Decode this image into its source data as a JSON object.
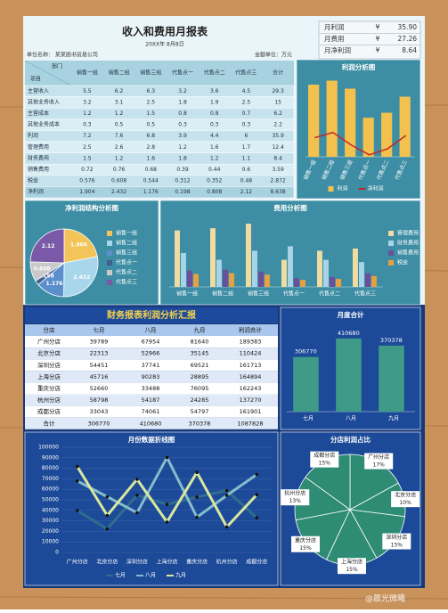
{
  "header": {
    "title": "收入和费用月报表",
    "date": "20XX年 8月8日",
    "company": "单位名称： 某某图书贸易公司",
    "unit": "金额单位：万元"
  },
  "summary": {
    "rows": [
      [
        "月利润",
        "¥",
        "35.90"
      ],
      [
        "月费用",
        "¥",
        "27.26"
      ],
      [
        "月净利润",
        "¥",
        "8.64"
      ]
    ]
  },
  "income_table": {
    "corner": [
      "部门",
      "项目"
    ],
    "columns": [
      "销售一组",
      "销售二组",
      "销售三组",
      "代售点一",
      "代售点二",
      "代售点三",
      "合计"
    ],
    "rows": [
      [
        "主营收入",
        5.5,
        6.2,
        6.3,
        3.2,
        3.6,
        4.5,
        29.3
      ],
      [
        "其他业务收入",
        3.2,
        3.1,
        2.5,
        1.8,
        1.9,
        2.5,
        15
      ],
      [
        "主营成本",
        1.2,
        1.2,
        1.5,
        0.8,
        0.8,
        0.7,
        6.2
      ],
      [
        "其他业务成本",
        0.3,
        0.5,
        0.5,
        0.3,
        0.3,
        0.3,
        2.2
      ],
      [
        "利润",
        7.2,
        7.6,
        6.8,
        3.9,
        4.4,
        6,
        35.9
      ],
      [
        "管理费用",
        2.5,
        2.6,
        2.8,
        1.2,
        1.6,
        1.7,
        12.4
      ],
      [
        "财务费用",
        1.5,
        1.2,
        1.6,
        1.8,
        1.2,
        1.1,
        8.4
      ],
      [
        "销售费用",
        0.72,
        0.76,
        0.68,
        0.39,
        0.44,
        0.6,
        3.59
      ],
      [
        "税金",
        0.576,
        0.608,
        0.544,
        0.312,
        0.352,
        0.48,
        2.872
      ],
      [
        "净利润",
        1.904,
        2.432,
        1.176,
        0.198,
        0.808,
        2.12,
        8.638
      ]
    ]
  },
  "branch_table": {
    "title": "财务报表利润分析汇报",
    "columns": [
      "分店",
      "七月",
      "八月",
      "九月",
      "利润合计"
    ],
    "rows": [
      [
        "广州分店",
        39789,
        67954,
        81640,
        189383
      ],
      [
        "北京分店",
        22313,
        52966,
        35145,
        110424
      ],
      [
        "深圳分店",
        54451,
        37741,
        69521,
        161713
      ],
      [
        "上海分店",
        45716,
        90283,
        28895,
        164894
      ],
      [
        "重庆分店",
        52660,
        33488,
        76095,
        162243
      ],
      [
        "杭州分店",
        58798,
        54187,
        24285,
        137270
      ],
      [
        "成都分店",
        33043,
        74061,
        54797,
        161901
      ],
      [
        "合计",
        306770,
        410680,
        370378,
        1087828
      ]
    ]
  },
  "chart_data": [
    {
      "type": "bar",
      "title": "利润分析图",
      "categories": [
        "销售一组",
        "销售二组",
        "销售三组",
        "代售点一",
        "代售点二",
        "代售点三"
      ],
      "series": [
        {
          "name": "利润",
          "type": "bar",
          "color": "#f2c14e",
          "values": [
            7.2,
            7.6,
            6.8,
            3.9,
            4.4,
            6
          ]
        },
        {
          "name": "净利润",
          "type": "line",
          "color": "#c0282c",
          "values": [
            1.904,
            2.432,
            1.176,
            0.198,
            0.808,
            2.12
          ]
        }
      ],
      "ylim": [
        0,
        8
      ],
      "legend": "bottom"
    },
    {
      "type": "pie",
      "title": "净利润结构分析图",
      "categories": [
        "销售一组",
        "销售二组",
        "销售三组",
        "代售点一",
        "代售点二",
        "代售点三"
      ],
      "values": [
        1.904,
        2.432,
        1.176,
        0.198,
        0.808,
        2.12
      ],
      "colors": [
        "#f2c45a",
        "#a8d6ea",
        "#5b8fcb",
        "#3f5f8f",
        "#c9c9c9",
        "#7a5aa8"
      ],
      "legend": "right"
    },
    {
      "type": "bar",
      "title": "费用分析图",
      "categories": [
        "销售一组",
        "销售二组",
        "销售三组",
        "代售点一",
        "代售点二",
        "代售点三"
      ],
      "series": [
        {
          "name": "管理费用",
          "color": "#f0dca0",
          "values": [
            2.5,
            2.6,
            2.8,
            1.2,
            1.6,
            1.7
          ]
        },
        {
          "name": "财务费用",
          "color": "#a8d4e8",
          "values": [
            1.5,
            1.2,
            1.6,
            1.8,
            1.2,
            1.1
          ]
        },
        {
          "name": "销售费用",
          "color": "#6a4f9c",
          "values": [
            0.72,
            0.76,
            0.68,
            0.39,
            0.44,
            0.6
          ]
        },
        {
          "name": "税金",
          "color": "#e8a040",
          "values": [
            0.576,
            0.608,
            0.544,
            0.312,
            0.352,
            0.48
          ]
        }
      ],
      "ylim": [
        0,
        3
      ],
      "legend": "right"
    },
    {
      "type": "bar",
      "title": "月度合计",
      "categories": [
        "七月",
        "八月",
        "九月"
      ],
      "values": [
        306770,
        410680,
        370378
      ],
      "color": "#3f9a88",
      "ylim": [
        0,
        450000
      ],
      "data_labels": true
    },
    {
      "type": "line",
      "title": "月份数据折线图",
      "categories": [
        "广州分店",
        "北京分店",
        "深圳分店",
        "上海分店",
        "重庆分店",
        "杭州分店",
        "成都分店"
      ],
      "series": [
        {
          "name": "七月",
          "color": "#2f6d8f",
          "values": [
            39789,
            22313,
            54451,
            45716,
            52660,
            58798,
            33043
          ]
        },
        {
          "name": "八月",
          "color": "#86bccb",
          "values": [
            67954,
            52966,
            37741,
            90283,
            33488,
            54187,
            74061
          ]
        },
        {
          "name": "九月",
          "color": "#d9e7a0",
          "values": [
            81640,
            35145,
            69521,
            28895,
            76095,
            24285,
            54797
          ]
        }
      ],
      "ylim": [
        0,
        100000
      ],
      "yticks": [
        0,
        10000,
        20000,
        30000,
        40000,
        50000,
        60000,
        70000,
        80000,
        90000,
        100000
      ],
      "grid": true,
      "legend": "bottom"
    },
    {
      "type": "pie",
      "title": "分店利润占比",
      "categories": [
        "广州分店",
        "北京分店",
        "深圳分店",
        "上海分店",
        "重庆分店",
        "杭州分店",
        "成都分店"
      ],
      "values": [
        17,
        10,
        15,
        15,
        15,
        13,
        15
      ],
      "value_labels": [
        "17%",
        "10%",
        "15%",
        "15%",
        "15%",
        "13%",
        "15%"
      ],
      "color": "#2e8b74"
    }
  ],
  "watermark": "@晨光微曦"
}
